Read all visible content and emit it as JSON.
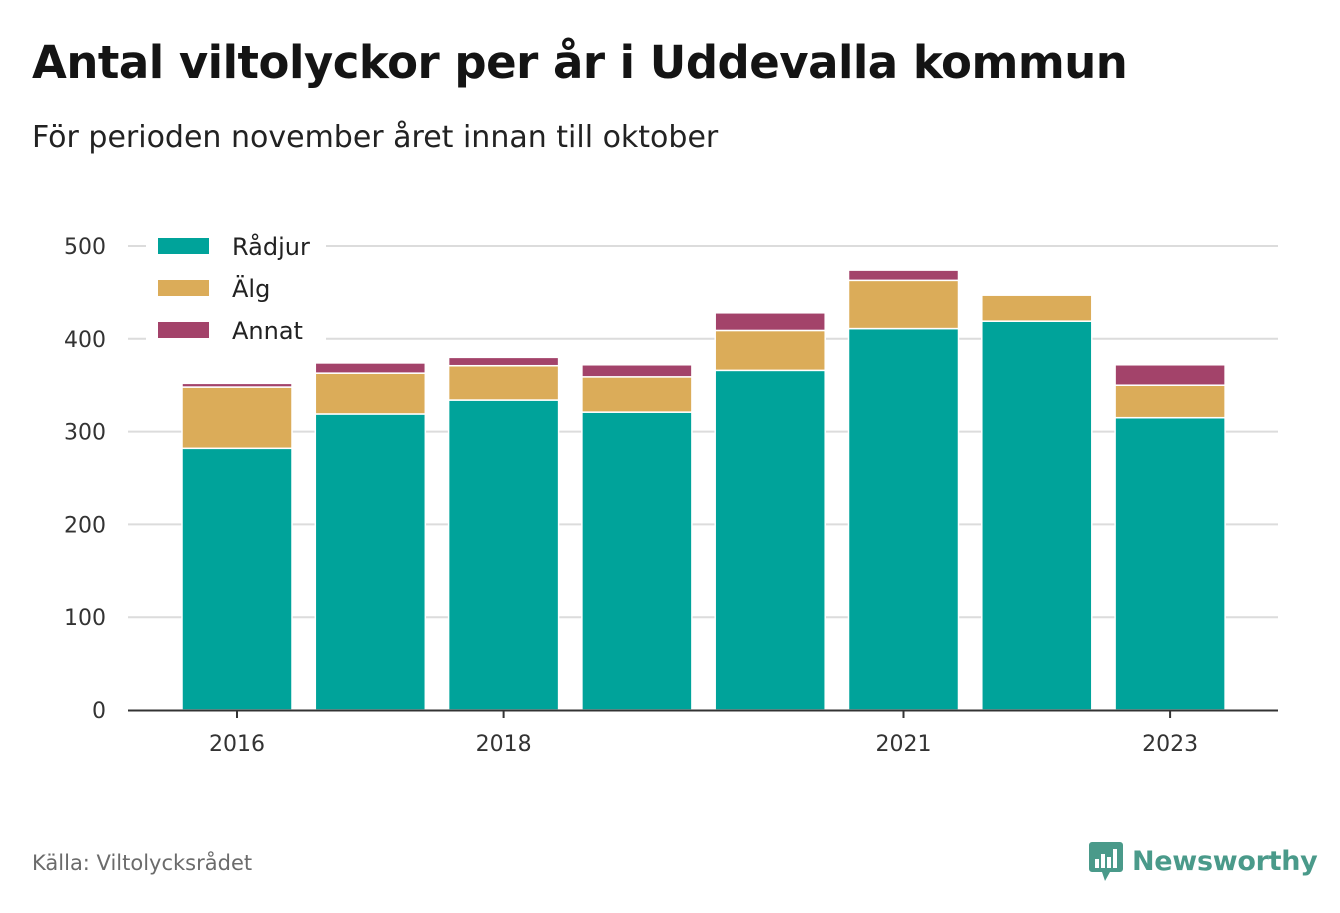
{
  "title": "Antal viltolyckor per år i Uddevalla kommun",
  "subtitle": "För perioden november året innan till oktober",
  "source": "Källa: Viltolycksrådet",
  "brand": {
    "name": "Newsworthy",
    "icon": "bar-chart-speech-bubble-icon",
    "color": "#4a9a8a"
  },
  "chart_data": {
    "type": "bar",
    "stacked": true,
    "categories": [
      "2016",
      "2017",
      "2018",
      "2019",
      "2020",
      "2021",
      "2022",
      "2023"
    ],
    "series": [
      {
        "name": "Rådjur",
        "color": "#00a39a",
        "values": [
          282,
          319,
          334,
          321,
          366,
          411,
          419,
          315
        ]
      },
      {
        "name": "Älg",
        "color": "#dbac59",
        "values": [
          66,
          44,
          37,
          38,
          43,
          52,
          28,
          35
        ]
      },
      {
        "name": "Annat",
        "color": "#a3436a",
        "values": [
          4,
          11,
          9,
          13,
          19,
          11,
          0,
          22
        ]
      }
    ],
    "x_tick_labels": [
      "2016",
      "2018",
      "2021",
      "2023"
    ],
    "y_ticks": [
      0,
      100,
      200,
      300,
      400,
      500
    ],
    "ylim": [
      0,
      500
    ],
    "grid": true,
    "legend_position": "top-left"
  }
}
